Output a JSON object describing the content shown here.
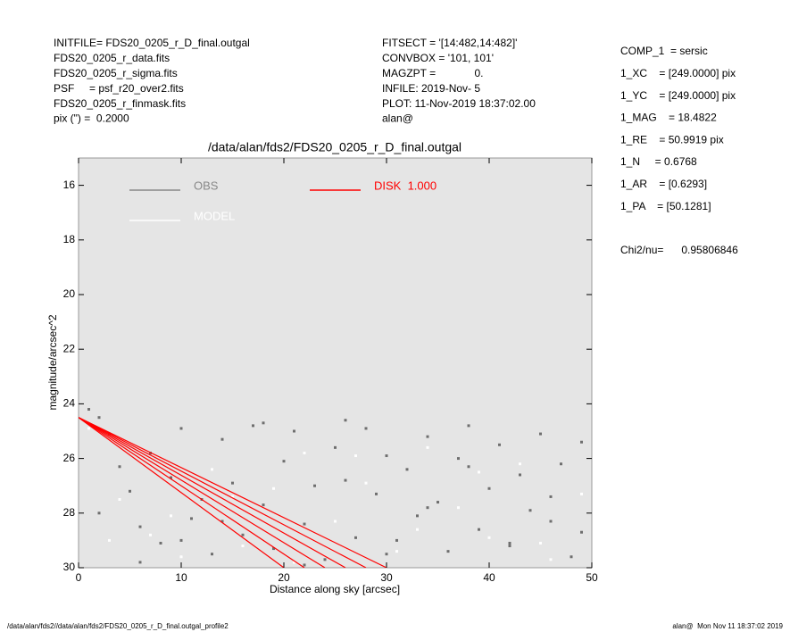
{
  "header": {
    "left": [
      "INITFILE= FDS20_0205_r_D_final.outgal",
      "FDS20_0205_r_data.fits",
      "FDS20_0205_r_sigma.fits",
      "PSF     = psf_r20_over2.fits",
      "FDS20_0205_r_finmask.fits",
      "pix (\") =  0.2000"
    ],
    "middle": [
      "FITSECT = '[14:482,14:482]'",
      "CONVBOX = '101, 101'",
      "MAGZPT =             0.",
      "INFILE: 2019-Nov- 5",
      "PLOT: 11-Nov-2019 18:37:02.00",
      "alan@"
    ],
    "right": [
      "COMP_1  = sersic",
      "1_XC    = [249.0000] pix",
      "1_YC    = [249.0000] pix",
      "1_MAG    = 18.4822",
      "1_RE    = 50.9919 pix",
      "1_N     = 0.6768",
      "1_AR    = [0.6293]",
      "1_PA    = [50.1281]"
    ],
    "chi2": "Chi2/nu=      0.95806846"
  },
  "footer": {
    "left": "/data/alan/fds2//data/alan/fds2/FDS20_0205_r_D_final.outgal_profile2",
    "right": "alan@  Mon Nov 11 18:37:02 2019"
  },
  "chart_data": {
    "type": "scatter",
    "title": "/data/alan/fds2/FDS20_0205_r_D_final.outgal",
    "xlabel": "Distance along sky [arcsec]",
    "ylabel": "magnitude/arcsec^2",
    "xlim": [
      0,
      50
    ],
    "xticks": [
      0,
      10,
      20,
      30,
      40,
      50
    ],
    "ylim": [
      30,
      15
    ],
    "yticks": [
      16,
      18,
      20,
      22,
      24,
      26,
      28,
      30
    ],
    "background": "#e5e5e5",
    "series": [
      {
        "name": "OBS",
        "color": "#6e6e6e",
        "x": [
          1,
          2,
          3,
          4,
          5,
          6,
          7,
          8,
          9,
          10,
          11,
          12,
          13,
          14,
          15,
          16,
          17,
          18,
          19,
          20,
          21,
          22,
          23,
          24,
          25,
          26,
          27,
          28,
          29,
          30,
          31,
          32,
          33,
          34,
          35,
          36,
          37,
          38,
          39,
          40,
          41,
          42,
          43,
          44,
          45,
          46,
          47,
          48,
          49,
          2,
          6,
          10,
          14,
          18,
          22,
          26,
          30,
          34,
          38,
          42,
          46,
          49
        ],
        "values": [
          24.2,
          24.5,
          25.1,
          26.3,
          27.2,
          28.5,
          25.8,
          29.1,
          26.7,
          24.9,
          28.2,
          27.5,
          29.5,
          25.3,
          26.9,
          28.8,
          24.8,
          27.7,
          29.3,
          26.1,
          25.0,
          28.4,
          27.0,
          29.7,
          25.6,
          26.8,
          28.9,
          24.9,
          27.3,
          25.9,
          29.0,
          26.4,
          28.1,
          25.2,
          27.6,
          29.4,
          26.0,
          24.8,
          28.6,
          27.1,
          25.5,
          29.2,
          26.6,
          27.9,
          25.1,
          28.3,
          26.2,
          29.6,
          25.4,
          28.0,
          29.8,
          29.0,
          28.3,
          24.7,
          29.9,
          24.6,
          29.5,
          27.8,
          26.3,
          29.1,
          27.4,
          28.7
        ]
      },
      {
        "name": "MODEL",
        "color": "#ffffff",
        "x": [
          1,
          4,
          7,
          10,
          13,
          16,
          19,
          22,
          25,
          28,
          31,
          34,
          37,
          40,
          43,
          46,
          49,
          3,
          9,
          15,
          21,
          27,
          33,
          39,
          45
        ],
        "values": [
          24.9,
          27.5,
          28.8,
          29.6,
          26.4,
          29.2,
          27.1,
          25.8,
          28.3,
          26.9,
          29.4,
          25.6,
          27.8,
          28.9,
          26.2,
          29.7,
          27.3,
          29.0,
          28.1,
          27.4,
          29.8,
          25.9,
          28.6,
          26.5,
          29.1
        ]
      },
      {
        "name": "DISK  1.000",
        "color": "#ff0000",
        "lines": [
          {
            "x": [
              0,
              20
            ],
            "values": [
              24.5,
              30
            ]
          },
          {
            "x": [
              0,
              22
            ],
            "values": [
              24.5,
              30
            ]
          },
          {
            "x": [
              0,
              24
            ],
            "values": [
              24.5,
              30
            ]
          },
          {
            "x": [
              0,
              26
            ],
            "values": [
              24.5,
              30
            ]
          },
          {
            "x": [
              0,
              28
            ],
            "values": [
              24.5,
              30
            ]
          },
          {
            "x": [
              0,
              30
            ],
            "values": [
              24.5,
              30
            ]
          }
        ]
      }
    ]
  }
}
